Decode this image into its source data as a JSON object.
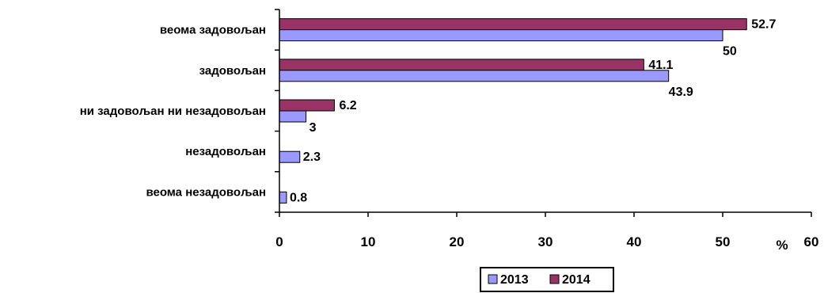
{
  "chart_data": {
    "type": "bar",
    "orientation": "horizontal",
    "title": "",
    "xlabel": "",
    "unit_label": "%",
    "categories": [
      "веома задовољан",
      "задовољан",
      "ни задовољан ни незадовољан",
      "незадовољан",
      "веома незадовољан"
    ],
    "series": [
      {
        "name": "2013",
        "values": [
          50,
          43.9,
          3,
          2.3,
          0.8
        ],
        "labels": [
          "50",
          "43.9",
          "3",
          "2.3",
          "0.8"
        ],
        "color": "#9999FF"
      },
      {
        "name": "2014",
        "values": [
          52.7,
          41.1,
          6.2,
          null,
          null
        ],
        "labels": [
          "52.7",
          "41.1",
          "6.2",
          "",
          ""
        ],
        "color": "#993366"
      }
    ],
    "xlim": [
      0,
      60
    ],
    "xticks": [
      0,
      10,
      20,
      30,
      40,
      50,
      60
    ],
    "tick_labels": [
      "0",
      "10",
      "20",
      "30",
      "40",
      "50",
      "60"
    ],
    "grid": false,
    "legend_position": "bottom"
  }
}
